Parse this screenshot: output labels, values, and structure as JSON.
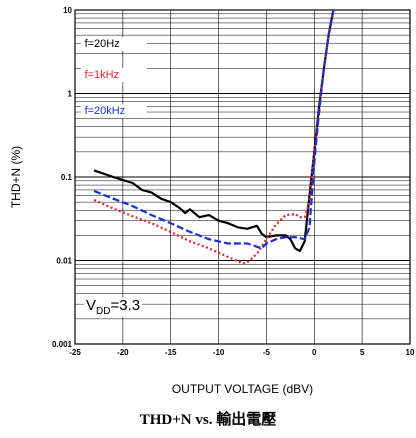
{
  "caption": "THD+N vs. 輸出電壓",
  "annotation": {
    "prefix": "V",
    "subscript": "DD",
    "suffix": "=3.3"
  },
  "colors": {
    "f20hz": "#000000",
    "f1khz": "#e8202a",
    "f20khz": "#1a2fd6"
  },
  "chart_data": {
    "type": "line",
    "title": "",
    "xlabel": "OUTPUT VOLTAGE (dBV)",
    "ylabel": "THD+N (%)",
    "xlim": [
      -25,
      10
    ],
    "ylim": [
      0.001,
      10
    ],
    "yscale": "log",
    "x_ticks": [
      -25,
      -20,
      -15,
      -10,
      -5,
      0,
      5,
      10
    ],
    "x_tick_labels": [
      "-25",
      "-20",
      "-15",
      "-10",
      "-5",
      "0",
      "5",
      "10"
    ],
    "y_ticks": [
      0.001,
      0.01,
      0.1,
      1,
      10
    ],
    "y_tick_labels": [
      "0.001",
      "0.01",
      "0.1",
      "1",
      "10"
    ],
    "grid": true,
    "legend_position": "upper-left",
    "series": [
      {
        "name": "f=20Hz",
        "style": "solid",
        "color": "#000000",
        "x": [
          -23,
          -21,
          -19,
          -18,
          -17,
          -16,
          -15,
          -14,
          -13.5,
          -13,
          -12,
          -11,
          -10,
          -9,
          -8,
          -7,
          -6,
          -5.5,
          -5,
          -4,
          -3,
          -2.5,
          -2,
          -1.5,
          -1,
          -0.5,
          0,
          0.5,
          1,
          1.5,
          2
        ],
        "y": [
          0.12,
          0.1,
          0.085,
          0.07,
          0.065,
          0.055,
          0.05,
          0.042,
          0.037,
          0.041,
          0.033,
          0.035,
          0.03,
          0.028,
          0.025,
          0.024,
          0.026,
          0.021,
          0.019,
          0.02,
          0.02,
          0.018,
          0.014,
          0.013,
          0.017,
          0.06,
          0.2,
          0.7,
          2.0,
          5.0,
          10
        ]
      },
      {
        "name": "f=1kHz",
        "style": "dotted",
        "color": "#e8202a",
        "x": [
          -23,
          -21,
          -19,
          -17,
          -15,
          -13,
          -11,
          -9,
          -8,
          -7.5,
          -7,
          -6,
          -5,
          -4,
          -3,
          -2,
          -1.5,
          -1,
          -0.5,
          0,
          0.5,
          1,
          1.5,
          2
        ],
        "y": [
          0.053,
          0.042,
          0.034,
          0.028,
          0.022,
          0.017,
          0.014,
          0.011,
          0.0098,
          0.0092,
          0.0095,
          0.012,
          0.018,
          0.027,
          0.035,
          0.036,
          0.033,
          0.033,
          0.05,
          0.2,
          0.7,
          2.0,
          5.0,
          10
        ]
      },
      {
        "name": "f=20kHz",
        "style": "dashed",
        "color": "#1a2fd6",
        "x": [
          -23,
          -21,
          -19,
          -17,
          -15,
          -13,
          -11,
          -9,
          -7,
          -5.5,
          -5,
          -4,
          -3,
          -2,
          -1,
          -0.5,
          0,
          0.5,
          1,
          1.5,
          2
        ],
        "y": [
          0.068,
          0.055,
          0.045,
          0.035,
          0.028,
          0.022,
          0.018,
          0.016,
          0.016,
          0.014,
          0.016,
          0.018,
          0.019,
          0.019,
          0.018,
          0.025,
          0.15,
          0.6,
          2.0,
          5.0,
          10
        ]
      }
    ]
  }
}
